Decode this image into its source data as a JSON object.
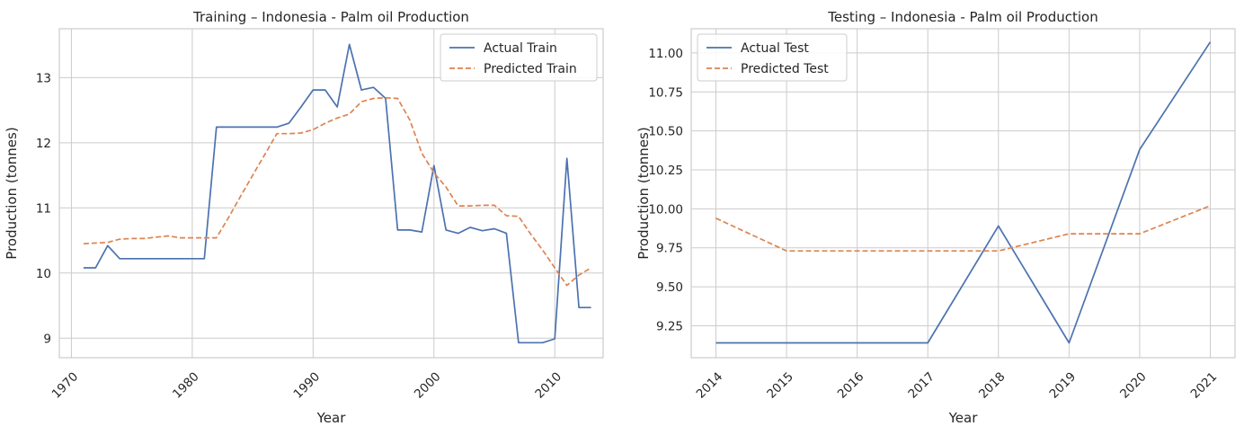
{
  "chart_data": [
    {
      "type": "line",
      "title": "Training – Indonesia - Palm oil Production",
      "xlabel": "Year",
      "ylabel": "Production (tonnes)",
      "xlim": [
        1969,
        2014
      ],
      "ylim": [
        8.7,
        13.75
      ],
      "xticks": [
        1970,
        1980,
        1990,
        2000,
        2010
      ],
      "yticks": [
        9,
        10,
        11,
        12,
        13
      ],
      "grid": true,
      "legend_position": "top-right",
      "x": [
        1971,
        1972,
        1973,
        1974,
        1975,
        1976,
        1977,
        1978,
        1979,
        1980,
        1981,
        1982,
        1983,
        1984,
        1985,
        1986,
        1987,
        1988,
        1989,
        1990,
        1991,
        1992,
        1993,
        1994,
        1995,
        1996,
        1997,
        1998,
        1999,
        2000,
        2001,
        2002,
        2003,
        2004,
        2005,
        2006,
        2007,
        2008,
        2009,
        2010,
        2011,
        2012,
        2013
      ],
      "series": [
        {
          "name": "Actual Train",
          "color": "#4c72b0",
          "dash": "solid",
          "values": [
            10.08,
            10.08,
            10.42,
            10.22,
            10.22,
            10.22,
            10.22,
            10.22,
            10.22,
            10.22,
            10.22,
            12.24,
            12.24,
            12.24,
            12.24,
            12.24,
            12.24,
            12.3,
            12.55,
            12.81,
            12.81,
            12.55,
            13.51,
            12.81,
            12.85,
            12.68,
            10.66,
            10.66,
            10.63,
            11.65,
            10.66,
            10.61,
            10.7,
            10.65,
            10.68,
            10.61,
            8.93,
            8.93,
            8.93,
            8.99,
            11.76,
            9.47,
            9.47
          ]
        },
        {
          "name": "Predicted Train",
          "color": "#dd8452",
          "dash": "dashed",
          "values": [
            10.45,
            10.46,
            10.47,
            10.52,
            10.53,
            10.53,
            10.55,
            10.57,
            10.54,
            10.54,
            10.54,
            10.54,
            10.85,
            11.18,
            11.5,
            11.82,
            12.14,
            12.14,
            12.15,
            12.2,
            12.3,
            12.38,
            12.44,
            12.63,
            12.68,
            12.69,
            12.68,
            12.35,
            11.84,
            11.54,
            11.32,
            11.03,
            11.03,
            11.04,
            11.04,
            10.88,
            10.87,
            10.6,
            10.35,
            10.08,
            9.81,
            9.97,
            10.08
          ]
        }
      ]
    },
    {
      "type": "line",
      "title": "Testing – Indonesia - Palm oil Production",
      "xlabel": "Year",
      "ylabel": "Production (tonnes)",
      "xlim": [
        2013.65,
        2021.35
      ],
      "ylim": [
        9.045,
        11.155
      ],
      "xticks": [
        2014,
        2015,
        2016,
        2017,
        2018,
        2019,
        2020,
        2021
      ],
      "yticks": [
        9.25,
        9.5,
        9.75,
        10.0,
        10.25,
        10.5,
        10.75,
        11.0
      ],
      "ytick_labels": [
        "9.25",
        "9.50",
        "9.75",
        "10.00",
        "10.25",
        "10.50",
        "10.75",
        "11.00"
      ],
      "grid": true,
      "legend_position": "top-left",
      "x": [
        2014,
        2015,
        2016,
        2017,
        2018,
        2019,
        2020,
        2021
      ],
      "series": [
        {
          "name": "Actual Test",
          "color": "#4c72b0",
          "dash": "solid",
          "values": [
            9.14,
            9.14,
            9.14,
            9.14,
            9.89,
            9.14,
            10.38,
            11.07
          ]
        },
        {
          "name": "Predicted Test",
          "color": "#dd8452",
          "dash": "dashed",
          "values": [
            9.94,
            9.73,
            9.73,
            9.73,
            9.73,
            9.84,
            9.84,
            10.02
          ]
        }
      ]
    }
  ]
}
